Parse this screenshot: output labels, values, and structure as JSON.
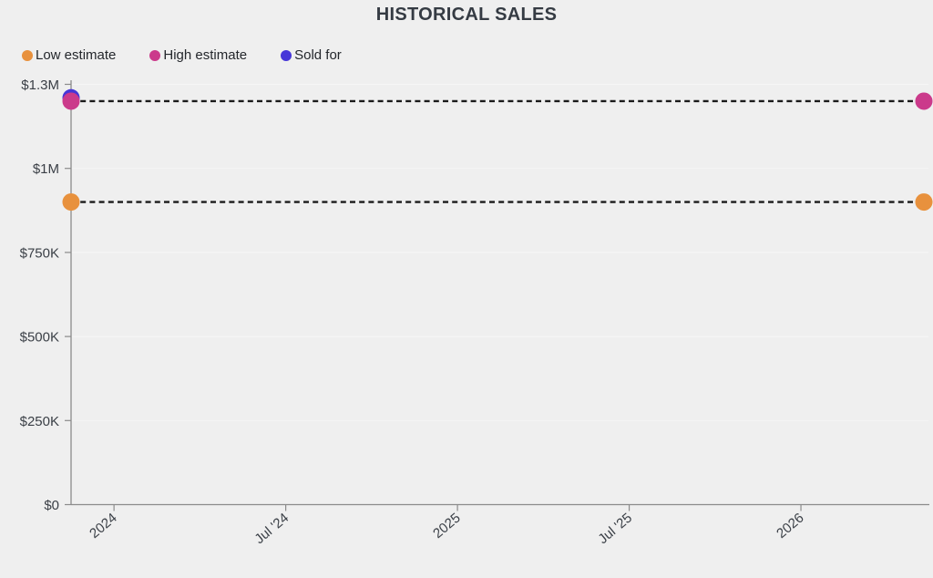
{
  "title": "HISTORICAL SALES",
  "colors": {
    "background": "#efefef",
    "title_text": "#353b43",
    "axis_text": "#3a3f46",
    "legend_text": "#24272c",
    "axis_line": "#8b8b8b",
    "gridline": "#f6f6f6",
    "dash_line": "#1a1a1a",
    "low_estimate": "#e8913d",
    "high_estimate": "#cb3a8b",
    "sold_for": "#4636d8"
  },
  "legend": {
    "items": [
      {
        "label": "Low estimate",
        "color": "#e8913d"
      },
      {
        "label": "High estimate",
        "color": "#cb3a8b"
      },
      {
        "label": "Sold for",
        "color": "#4636d8"
      }
    ]
  },
  "chart_data": {
    "type": "scatter",
    "title": "HISTORICAL SALES",
    "grid": true,
    "legend_position": "top-left",
    "x_axis": {
      "range": [
        2023.875,
        2026.358
      ],
      "label_rotation": -40,
      "ticks": [
        {
          "value": 2024.0,
          "label": "2024"
        },
        {
          "value": 2024.5,
          "label": "Jul '24"
        },
        {
          "value": 2025.0,
          "label": "2025"
        },
        {
          "value": 2025.5,
          "label": "Jul '25"
        },
        {
          "value": 2026.0,
          "label": "2026"
        }
      ]
    },
    "y_axis": {
      "range": [
        0,
        1250000
      ],
      "ticks": [
        {
          "value": 0,
          "label": "$0"
        },
        {
          "value": 250000,
          "label": "$250K"
        },
        {
          "value": 500000,
          "label": "$500K"
        },
        {
          "value": 750000,
          "label": "$750K"
        },
        {
          "value": 1000000,
          "label": "$1M"
        },
        {
          "value": 1250000,
          "label": "$1.3M"
        }
      ]
    },
    "series": [
      {
        "name": "Low estimate",
        "color": "#e8913d",
        "line_style": "dashed",
        "z": 1,
        "points": [
          {
            "x": 2023.875,
            "y": 900000
          },
          {
            "x": 2026.358,
            "y": 900000
          }
        ]
      },
      {
        "name": "High estimate",
        "color": "#cb3a8b",
        "line_style": "dashed",
        "z": 3,
        "points": [
          {
            "x": 2023.875,
            "y": 1200000
          },
          {
            "x": 2026.358,
            "y": 1200000
          }
        ]
      },
      {
        "name": "Sold for",
        "color": "#4636d8",
        "line_style": "none",
        "z": 2,
        "points": [
          {
            "x": 2023.875,
            "y": 1210000
          }
        ]
      }
    ]
  }
}
